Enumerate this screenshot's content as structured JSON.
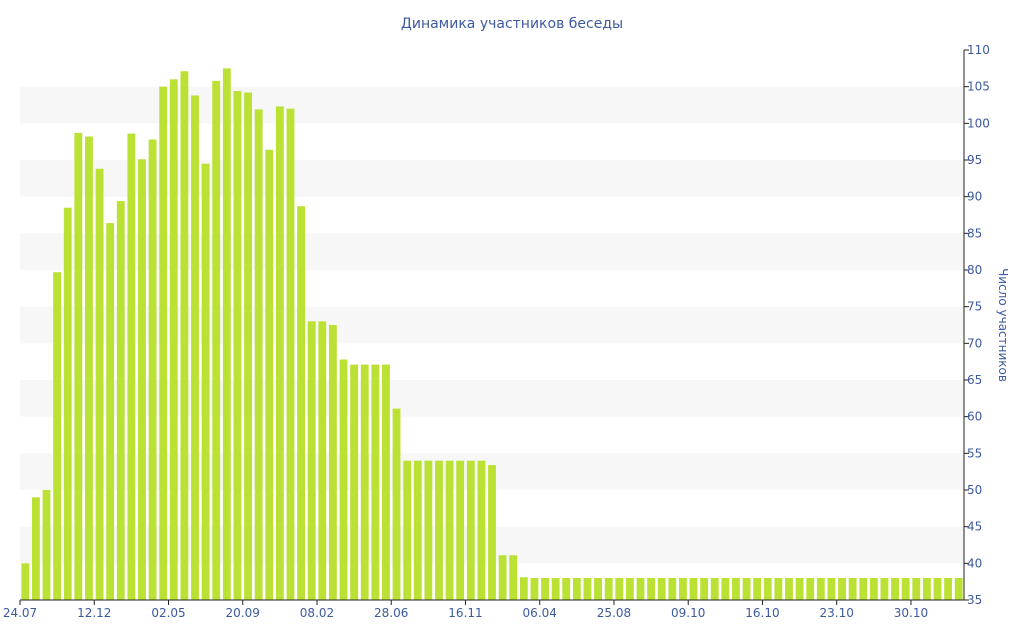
{
  "chart_data": {
    "type": "bar",
    "title": "Динамика участников беседы",
    "xlabel": "",
    "ylabel": "Число участников",
    "y_axis_position": "right",
    "ylim": [
      35,
      110
    ],
    "yticks": [
      35,
      40,
      45,
      50,
      55,
      60,
      65,
      70,
      75,
      80,
      85,
      90,
      95,
      100,
      105,
      110
    ],
    "grid": "alternating horizontal bands",
    "bar_color": "#bbe135",
    "band_color": "#f7f7f7",
    "text_color": "#3d5a9e",
    "x_tick_labels": [
      {
        "index": 0,
        "label": "24.07"
      },
      {
        "index": 7,
        "label": "12.12"
      },
      {
        "index": 14,
        "label": "02.05"
      },
      {
        "index": 21,
        "label": "20.09"
      },
      {
        "index": 28,
        "label": "08.02"
      },
      {
        "index": 35,
        "label": "28.06"
      },
      {
        "index": 42,
        "label": "16.11"
      },
      {
        "index": 49,
        "label": "06.04"
      },
      {
        "index": 56,
        "label": "25.08"
      },
      {
        "index": 63,
        "label": "09.10"
      },
      {
        "index": 70,
        "label": "16.10"
      },
      {
        "index": 77,
        "label": "23.10"
      },
      {
        "index": 84,
        "label": "30.10"
      }
    ],
    "values": [
      40,
      49,
      50,
      79.7,
      88.5,
      98.7,
      98.2,
      93.8,
      86.4,
      89.4,
      98.6,
      95.1,
      97.8,
      105,
      106,
      107.1,
      103.8,
      94.5,
      105.8,
      107.5,
      104.4,
      104.2,
      101.9,
      96.4,
      102.3,
      102,
      88.7,
      73,
      73,
      72.5,
      67.8,
      67.1,
      67.1,
      67.1,
      67.1,
      61.1,
      54,
      54,
      54,
      54,
      54,
      54,
      54,
      54,
      53.4,
      41.1,
      41.1,
      38.1,
      38,
      38,
      38,
      38,
      38,
      38,
      38,
      38,
      38,
      38,
      38,
      38,
      38,
      38,
      38,
      38,
      38,
      38,
      38,
      38,
      38,
      38,
      38,
      38,
      38,
      38,
      38,
      38,
      38,
      38,
      38,
      38,
      38,
      38,
      38,
      38,
      38,
      38,
      38,
      38,
      38
    ]
  }
}
